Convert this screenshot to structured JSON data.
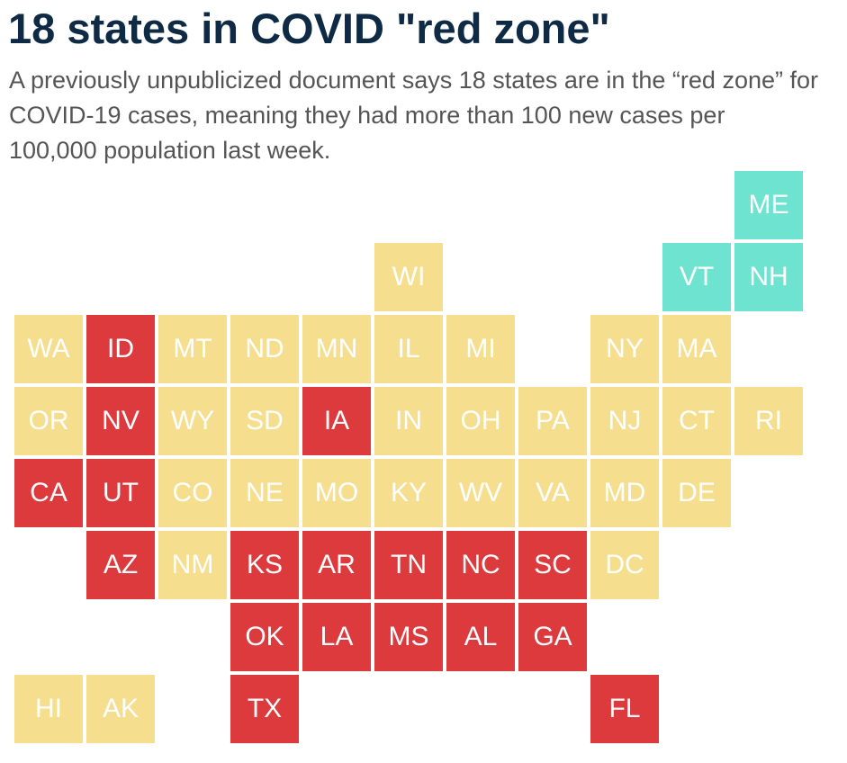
{
  "title": "18 states in COVID \"red zone\"",
  "subtitle": "A previously unpublicized document says 18 states are in the “red zone” for COVID-19 cases, meaning they had more than 100 new cases per 100,000 population last week.",
  "colors": {
    "red": "#dc3a3d",
    "yellow": "#f5df8f",
    "teal": "#6ee3cf"
  },
  "states": [
    {
      "abbr": "ME",
      "status": "teal",
      "row": 0,
      "col": 10
    },
    {
      "abbr": "WI",
      "status": "yellow",
      "row": 1,
      "col": 5
    },
    {
      "abbr": "VT",
      "status": "teal",
      "row": 1,
      "col": 9
    },
    {
      "abbr": "NH",
      "status": "teal",
      "row": 1,
      "col": 10
    },
    {
      "abbr": "WA",
      "status": "yellow",
      "row": 2,
      "col": 0
    },
    {
      "abbr": "ID",
      "status": "red",
      "row": 2,
      "col": 1
    },
    {
      "abbr": "MT",
      "status": "yellow",
      "row": 2,
      "col": 2
    },
    {
      "abbr": "ND",
      "status": "yellow",
      "row": 2,
      "col": 3
    },
    {
      "abbr": "MN",
      "status": "yellow",
      "row": 2,
      "col": 4
    },
    {
      "abbr": "IL",
      "status": "yellow",
      "row": 2,
      "col": 5
    },
    {
      "abbr": "MI",
      "status": "yellow",
      "row": 2,
      "col": 6
    },
    {
      "abbr": "NY",
      "status": "yellow",
      "row": 2,
      "col": 8
    },
    {
      "abbr": "MA",
      "status": "yellow",
      "row": 2,
      "col": 9
    },
    {
      "abbr": "OR",
      "status": "yellow",
      "row": 3,
      "col": 0
    },
    {
      "abbr": "NV",
      "status": "red",
      "row": 3,
      "col": 1
    },
    {
      "abbr": "WY",
      "status": "yellow",
      "row": 3,
      "col": 2
    },
    {
      "abbr": "SD",
      "status": "yellow",
      "row": 3,
      "col": 3
    },
    {
      "abbr": "IA",
      "status": "red",
      "row": 3,
      "col": 4
    },
    {
      "abbr": "IN",
      "status": "yellow",
      "row": 3,
      "col": 5
    },
    {
      "abbr": "OH",
      "status": "yellow",
      "row": 3,
      "col": 6
    },
    {
      "abbr": "PA",
      "status": "yellow",
      "row": 3,
      "col": 7
    },
    {
      "abbr": "NJ",
      "status": "yellow",
      "row": 3,
      "col": 8
    },
    {
      "abbr": "CT",
      "status": "yellow",
      "row": 3,
      "col": 9
    },
    {
      "abbr": "RI",
      "status": "yellow",
      "row": 3,
      "col": 10
    },
    {
      "abbr": "CA",
      "status": "red",
      "row": 4,
      "col": 0
    },
    {
      "abbr": "UT",
      "status": "red",
      "row": 4,
      "col": 1
    },
    {
      "abbr": "CO",
      "status": "yellow",
      "row": 4,
      "col": 2
    },
    {
      "abbr": "NE",
      "status": "yellow",
      "row": 4,
      "col": 3
    },
    {
      "abbr": "MO",
      "status": "yellow",
      "row": 4,
      "col": 4
    },
    {
      "abbr": "KY",
      "status": "yellow",
      "row": 4,
      "col": 5
    },
    {
      "abbr": "WV",
      "status": "yellow",
      "row": 4,
      "col": 6
    },
    {
      "abbr": "VA",
      "status": "yellow",
      "row": 4,
      "col": 7
    },
    {
      "abbr": "MD",
      "status": "yellow",
      "row": 4,
      "col": 8
    },
    {
      "abbr": "DE",
      "status": "yellow",
      "row": 4,
      "col": 9
    },
    {
      "abbr": "AZ",
      "status": "red",
      "row": 5,
      "col": 1
    },
    {
      "abbr": "NM",
      "status": "yellow",
      "row": 5,
      "col": 2
    },
    {
      "abbr": "KS",
      "status": "red",
      "row": 5,
      "col": 3
    },
    {
      "abbr": "AR",
      "status": "red",
      "row": 5,
      "col": 4
    },
    {
      "abbr": "TN",
      "status": "red",
      "row": 5,
      "col": 5
    },
    {
      "abbr": "NC",
      "status": "red",
      "row": 5,
      "col": 6
    },
    {
      "abbr": "SC",
      "status": "red",
      "row": 5,
      "col": 7
    },
    {
      "abbr": "DC",
      "status": "yellow",
      "row": 5,
      "col": 8
    },
    {
      "abbr": "OK",
      "status": "red",
      "row": 6,
      "col": 3
    },
    {
      "abbr": "LA",
      "status": "red",
      "row": 6,
      "col": 4
    },
    {
      "abbr": "MS",
      "status": "red",
      "row": 6,
      "col": 5
    },
    {
      "abbr": "AL",
      "status": "red",
      "row": 6,
      "col": 6
    },
    {
      "abbr": "GA",
      "status": "red",
      "row": 6,
      "col": 7
    },
    {
      "abbr": "HI",
      "status": "yellow",
      "row": 7,
      "col": 0
    },
    {
      "abbr": "AK",
      "status": "yellow",
      "row": 7,
      "col": 1
    },
    {
      "abbr": "TX",
      "status": "red",
      "row": 7,
      "col": 3
    },
    {
      "abbr": "FL",
      "status": "red",
      "row": 7,
      "col": 8
    }
  ]
}
